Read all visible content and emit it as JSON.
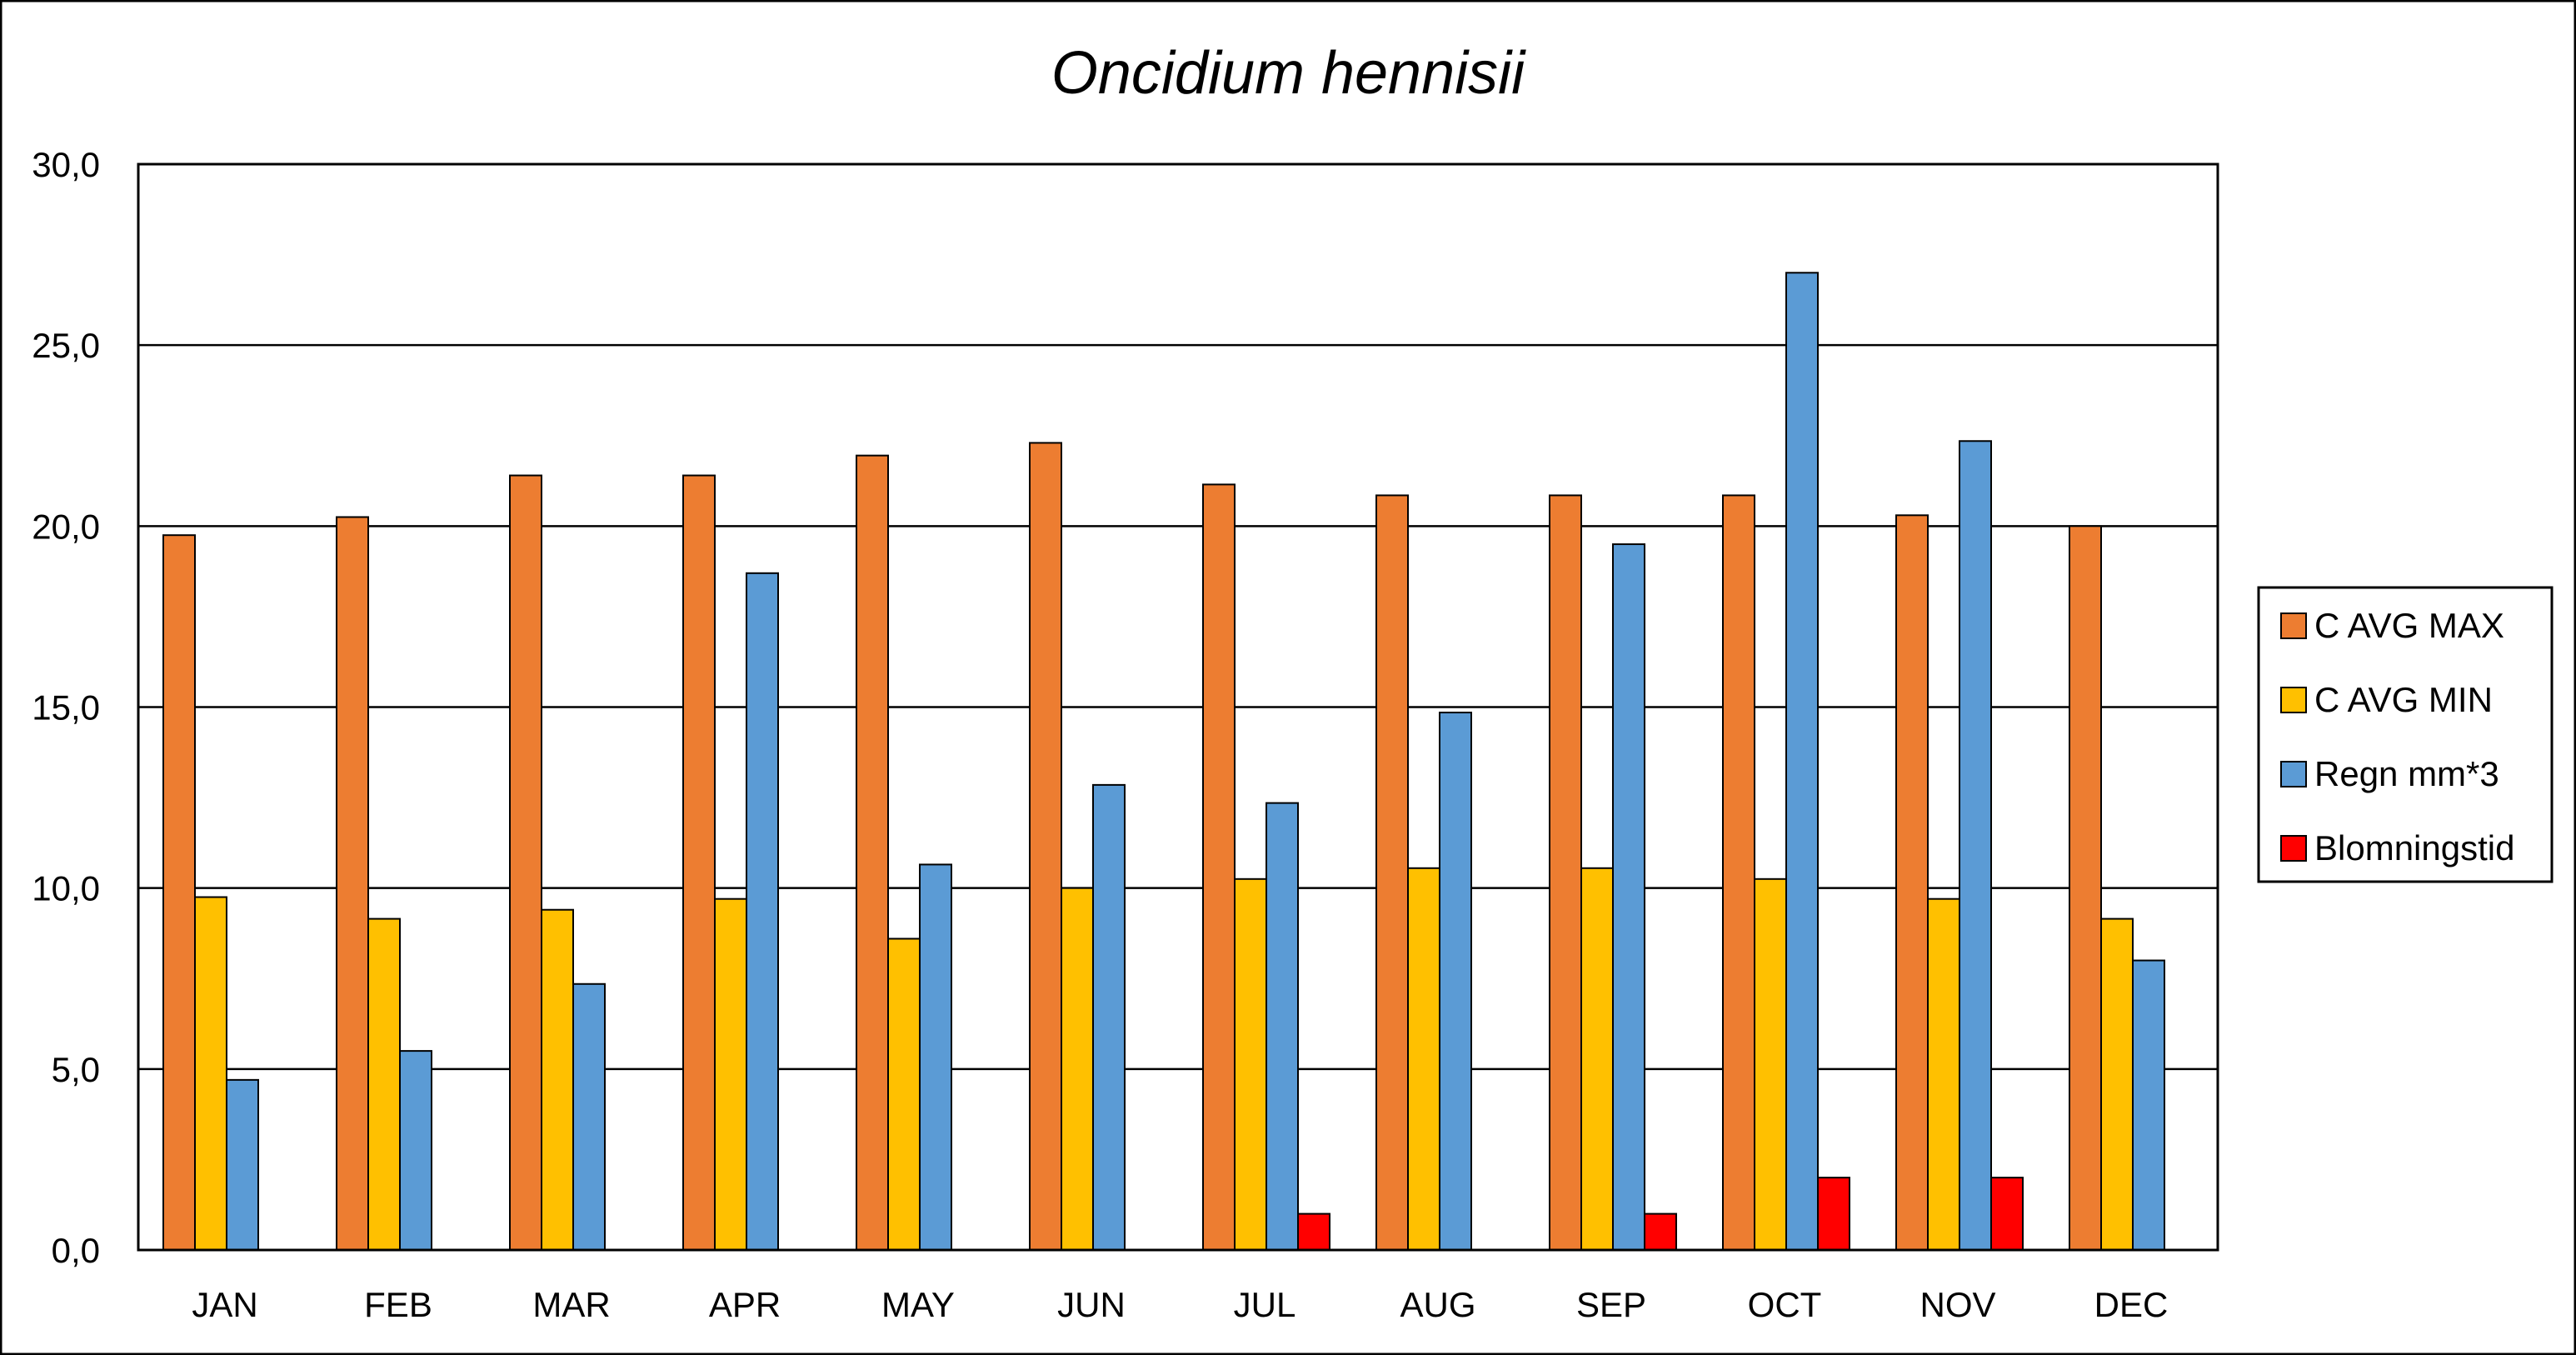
{
  "chart_data": {
    "type": "bar",
    "title": "Oncidium hennisii",
    "xlabel": "",
    "ylabel": "",
    "ylim": [
      0,
      30
    ],
    "y_tick_step": 5,
    "y_tick_labels": [
      "0,0",
      "5,0",
      "10,0",
      "15,0",
      "20,0",
      "25,0",
      "30,0"
    ],
    "grid": true,
    "legend_position": "right",
    "categories": [
      "JAN",
      "FEB",
      "MAR",
      "APR",
      "MAY",
      "JUN",
      "JUL",
      "AUG",
      "SEP",
      "OCT",
      "NOV",
      "DEC"
    ],
    "series": [
      {
        "name": "C AVG MAX",
        "color": "#ED7D31",
        "values": [
          19.75,
          20.25,
          21.4,
          21.4,
          21.95,
          22.3,
          21.15,
          20.85,
          20.85,
          20.85,
          20.3,
          20.0
        ]
      },
      {
        "name": "C AVG MIN",
        "color": "#FFC000",
        "values": [
          9.75,
          9.15,
          9.4,
          9.7,
          8.6,
          10.0,
          10.25,
          10.55,
          10.55,
          10.25,
          9.7,
          9.15
        ]
      },
      {
        "name": "Regn mm*3",
        "color": "#5B9BD5",
        "values": [
          4.7,
          5.5,
          7.35,
          18.7,
          10.65,
          12.85,
          12.35,
          14.85,
          19.5,
          27.0,
          22.35,
          8.0
        ]
      },
      {
        "name": "Blomningstid",
        "color": "#FF0000",
        "values": [
          0,
          0,
          0,
          0,
          0,
          0,
          1,
          0,
          1,
          2,
          2,
          0
        ]
      }
    ]
  }
}
